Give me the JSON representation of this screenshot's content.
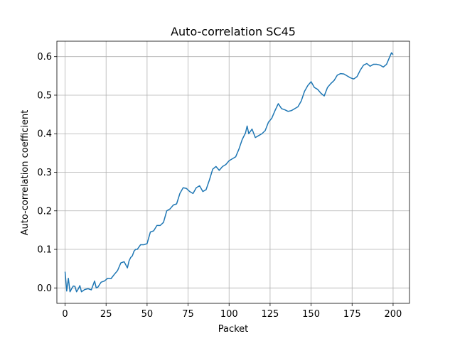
{
  "chart_data": {
    "type": "line",
    "title": "Auto-correlation SC45",
    "xlabel": "Packet",
    "ylabel": "Auto-correlation coefficient",
    "xlim": [
      -5,
      210
    ],
    "ylim": [
      -0.04,
      0.64
    ],
    "xticks": [
      0,
      25,
      50,
      75,
      100,
      125,
      150,
      175,
      200
    ],
    "yticks": [
      0.0,
      0.1,
      0.2,
      0.3,
      0.4,
      0.5,
      0.6
    ],
    "xtick_labels": [
      "0",
      "25",
      "50",
      "75",
      "100",
      "125",
      "150",
      "175",
      "200"
    ],
    "ytick_labels": [
      "0.0",
      "0.1",
      "0.2",
      "0.3",
      "0.4",
      "0.5",
      "0.6"
    ],
    "grid": true,
    "color": "#1f77b4",
    "series": [
      {
        "x": [
          0,
          1,
          2,
          3,
          4,
          5,
          6,
          7,
          8,
          9,
          10,
          12,
          14,
          16,
          18,
          19,
          20,
          22,
          24,
          26,
          28,
          30,
          32,
          34,
          36,
          38,
          39,
          40,
          41,
          42,
          43,
          44,
          46,
          48,
          50,
          52,
          54,
          56,
          58,
          60,
          62,
          64,
          66,
          68,
          70,
          72,
          74,
          76,
          78,
          80,
          82,
          84,
          86,
          88,
          90,
          92,
          94,
          96,
          98,
          100,
          102,
          104,
          106,
          108,
          110,
          111,
          112,
          114,
          116,
          118,
          120,
          122,
          124,
          126,
          128,
          130,
          132,
          134,
          136,
          138,
          140,
          142,
          144,
          146,
          148,
          150,
          152,
          154,
          156,
          158,
          160,
          162,
          164,
          166,
          168,
          170,
          172,
          174,
          176,
          178,
          180,
          182,
          184,
          186,
          188,
          190,
          192,
          194,
          196,
          198,
          199,
          200
        ],
        "y": [
          0.042,
          -0.008,
          0.025,
          -0.01,
          -0.002,
          0.005,
          0.004,
          -0.01,
          -0.003,
          0.006,
          -0.01,
          -0.004,
          -0.002,
          -0.005,
          0.018,
          0.0,
          0.002,
          0.015,
          0.018,
          0.025,
          0.024,
          0.035,
          0.045,
          0.065,
          0.068,
          0.052,
          0.07,
          0.079,
          0.083,
          0.095,
          0.1,
          0.1,
          0.112,
          0.112,
          0.115,
          0.145,
          0.148,
          0.162,
          0.162,
          0.17,
          0.2,
          0.205,
          0.215,
          0.218,
          0.245,
          0.26,
          0.258,
          0.25,
          0.245,
          0.26,
          0.265,
          0.25,
          0.255,
          0.28,
          0.308,
          0.315,
          0.305,
          0.315,
          0.32,
          0.33,
          0.335,
          0.34,
          0.36,
          0.385,
          0.402,
          0.42,
          0.4,
          0.412,
          0.39,
          0.395,
          0.4,
          0.408,
          0.43,
          0.44,
          0.46,
          0.478,
          0.465,
          0.462,
          0.458,
          0.46,
          0.465,
          0.47,
          0.485,
          0.51,
          0.525,
          0.535,
          0.52,
          0.515,
          0.505,
          0.498,
          0.52,
          0.53,
          0.538,
          0.552,
          0.556,
          0.555,
          0.55,
          0.545,
          0.542,
          0.548,
          0.565,
          0.578,
          0.582,
          0.575,
          0.58,
          0.58,
          0.578,
          0.573,
          0.58,
          0.6,
          0.61,
          0.605
        ]
      }
    ]
  }
}
